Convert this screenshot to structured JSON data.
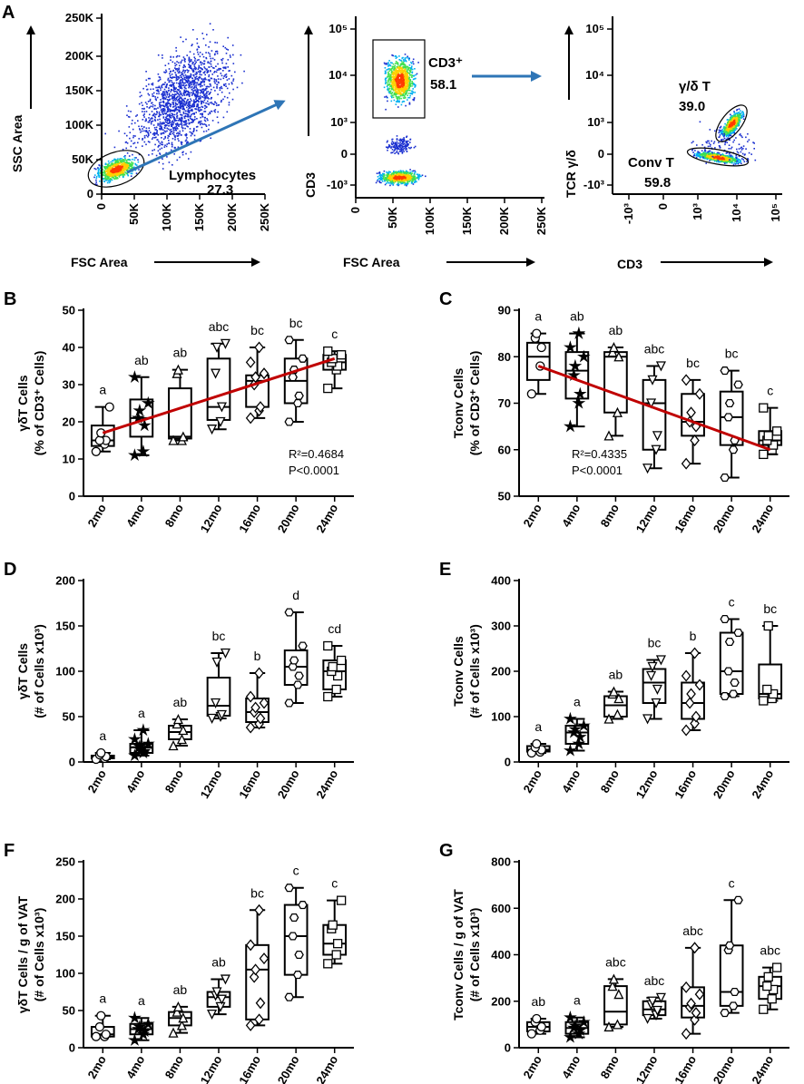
{
  "figure": {
    "panel_a_letter": "A",
    "flow_arrow_color": "#2e75b6",
    "fit_line_color": "#c00000"
  },
  "flow_panels": [
    {
      "id": "lymph",
      "y_title": "SSC Area",
      "x_title": "FSC Area",
      "x_ticks": [
        "0",
        "50K",
        "100K",
        "150K",
        "200K",
        "250K"
      ],
      "y_ticks": [
        "0",
        "50K",
        "100K",
        "150K",
        "200K",
        "250K"
      ],
      "gate_label": "Lymphocytes",
      "gate_value": "27.3"
    },
    {
      "id": "cd3",
      "y_title": "CD3",
      "x_title": "FSC Area",
      "x_ticks": [
        "0",
        "50K",
        "100K",
        "150K",
        "200K",
        "250K"
      ],
      "y_ticks": [
        "10⁵",
        "10⁴",
        "10³",
        "0",
        "-10³"
      ],
      "gate_label": "CD3⁺",
      "gate_value": "58.1"
    },
    {
      "id": "tcr",
      "y_title": "TCR γ/δ",
      "x_title": "CD3",
      "x_ticks": [
        "-10³",
        "0",
        "10³",
        "10⁴",
        "10⁵"
      ],
      "y_ticks": [
        "10⁵",
        "10⁴",
        "10³",
        "0",
        "-10³"
      ],
      "gate1_label": "γ/δ T",
      "gate1_value": "39.0",
      "gate2_label": "Conv T",
      "gate2_value": "59.8"
    }
  ],
  "chart_data": [
    {
      "panel": "B",
      "type": "box",
      "title": "",
      "ylabel_line1": "γδT Cells",
      "ylabel_line2": "(% of CD3⁺ Cells)",
      "ylim": [
        0,
        50
      ],
      "yticks": [
        0,
        10,
        20,
        30,
        40,
        50
      ],
      "categories": [
        "2mo",
        "4mo",
        "8mo",
        "12mo",
        "16mo",
        "20mo",
        "24mo"
      ],
      "letters": [
        "a",
        "ab",
        "ab",
        "abc",
        "bc",
        "bc",
        "c"
      ],
      "marker": [
        "circle",
        "star",
        "triangle",
        "triangle-down",
        "diamond",
        "hexagon",
        "square"
      ],
      "boxes": [
        {
          "min": 12,
          "q1": 13.5,
          "median": 15,
          "q3": 19,
          "max": 24
        },
        {
          "min": 11,
          "q1": 16,
          "median": 21,
          "q3": 26,
          "max": 32
        },
        {
          "min": 15,
          "q1": 15.5,
          "median": 16,
          "q3": 29,
          "max": 34
        },
        {
          "min": 18,
          "q1": 20.5,
          "median": 24,
          "q3": 37,
          "max": 41
        },
        {
          "min": 21,
          "q1": 24,
          "median": 31,
          "q3": 32.5,
          "max": 40
        },
        {
          "min": 20,
          "q1": 25,
          "median": 31,
          "q3": 37,
          "max": 42
        },
        {
          "min": 29,
          "q1": 34,
          "median": 36,
          "q3": 38,
          "max": 39
        }
      ],
      "points": [
        [
          12,
          14,
          15,
          15,
          17,
          24
        ],
        [
          11,
          12,
          19,
          21,
          23,
          25,
          32
        ],
        [
          15,
          15,
          16,
          33,
          34
        ],
        [
          18,
          20,
          24,
          33,
          40,
          41
        ],
        [
          21,
          23,
          24,
          30,
          32,
          33,
          36,
          40
        ],
        [
          20,
          25,
          27,
          32,
          34,
          37,
          42
        ],
        [
          29,
          34,
          35,
          36,
          37,
          38,
          39
        ]
      ],
      "fit": {
        "x_start": 0,
        "y_start": 17,
        "x_end": 6,
        "y_end": 37
      },
      "stat1": "R²=0.4684",
      "stat2": "P<0.0001",
      "stat_pos": "bottom-right"
    },
    {
      "panel": "C",
      "type": "box",
      "title": "",
      "ylabel_line1": "Tconv Cells",
      "ylabel_line2": "(% of CD3⁺ Cells)",
      "ylim": [
        50,
        90
      ],
      "yticks": [
        50,
        60,
        70,
        80,
        90
      ],
      "categories": [
        "2mo",
        "4mo",
        "8mo",
        "12mo",
        "16mo",
        "20mo",
        "24mo"
      ],
      "letters": [
        "a",
        "ab",
        "ab",
        "abc",
        "bc",
        "bc",
        "c"
      ],
      "marker": [
        "circle",
        "star",
        "triangle",
        "triangle-down",
        "diamond",
        "hexagon",
        "square"
      ],
      "boxes": [
        {
          "min": 72,
          "q1": 75,
          "median": 80,
          "q3": 83,
          "max": 85
        },
        {
          "min": 65,
          "q1": 71,
          "median": 77,
          "q3": 81,
          "max": 85
        },
        {
          "min": 63,
          "q1": 68,
          "median": 80,
          "q3": 81,
          "max": 82
        },
        {
          "min": 56,
          "q1": 60,
          "median": 70,
          "q3": 75,
          "max": 78
        },
        {
          "min": 57,
          "q1": 63,
          "median": 66,
          "q3": 72,
          "max": 75
        },
        {
          "min": 54,
          "q1": 61,
          "median": 67,
          "q3": 72.5,
          "max": 77
        },
        {
          "min": 59,
          "q1": 61,
          "median": 62,
          "q3": 64,
          "max": 69
        }
      ],
      "points": [
        [
          72,
          78,
          82,
          84,
          85
        ],
        [
          65,
          70,
          72,
          76,
          78,
          80,
          82,
          85
        ],
        [
          63,
          68,
          80,
          81,
          82
        ],
        [
          56,
          60,
          63,
          70,
          75,
          78
        ],
        [
          57,
          62,
          65,
          66,
          68,
          72,
          75
        ],
        [
          54,
          60,
          62,
          67,
          70,
          74,
          77
        ],
        [
          59,
          60,
          61,
          62,
          63,
          64,
          69
        ]
      ],
      "fit": {
        "x_start": 0,
        "y_start": 78,
        "x_end": 6,
        "y_end": 60
      },
      "stat1": "R²=0.4335",
      "stat2": "P<0.0001",
      "stat_pos": "bottom-left"
    },
    {
      "panel": "D",
      "type": "box",
      "title": "",
      "ylabel_line1": "γδT Cells",
      "ylabel_line2": "(# of Cells x10³)",
      "ylim": [
        0,
        200
      ],
      "yticks": [
        0,
        50,
        100,
        150,
        200
      ],
      "categories": [
        "2mo",
        "4mo",
        "8mo",
        "12mo",
        "16mo",
        "20mo",
        "24mo"
      ],
      "letters": [
        "a",
        "a",
        "ab",
        "bc",
        "b",
        "d",
        "cd"
      ],
      "marker": [
        "circle",
        "star",
        "triangle",
        "triangle-down",
        "diamond",
        "hexagon",
        "square"
      ],
      "boxes": [
        {
          "min": 3,
          "q1": 4,
          "median": 5,
          "q3": 7,
          "max": 10
        },
        {
          "min": 7,
          "q1": 10,
          "median": 16,
          "q3": 20,
          "max": 35
        },
        {
          "min": 18,
          "q1": 25,
          "median": 33,
          "q3": 40,
          "max": 47
        },
        {
          "min": 48,
          "q1": 51,
          "median": 62,
          "q3": 93,
          "max": 120
        },
        {
          "min": 38,
          "q1": 44,
          "median": 55,
          "q3": 70,
          "max": 98
        },
        {
          "min": 65,
          "q1": 85,
          "median": 105,
          "q3": 123,
          "max": 165
        },
        {
          "min": 72,
          "q1": 80,
          "median": 100,
          "q3": 112,
          "max": 128
        }
      ],
      "points": [
        [
          3,
          4,
          6,
          8,
          10
        ],
        [
          7,
          10,
          12,
          15,
          17,
          20,
          25,
          35
        ],
        [
          18,
          25,
          35,
          42,
          47
        ],
        [
          48,
          50,
          52,
          65,
          110,
          120
        ],
        [
          38,
          42,
          48,
          55,
          60,
          65,
          72,
          98
        ],
        [
          65,
          85,
          95,
          105,
          112,
          128,
          165
        ],
        [
          72,
          80,
          95,
          100,
          105,
          112,
          128
        ]
      ],
      "fit": null,
      "stat1": "",
      "stat2": "",
      "stat_pos": "none"
    },
    {
      "panel": "E",
      "type": "box",
      "title": "",
      "ylabel_line1": "Tconv Cells",
      "ylabel_line2": "(# of Cells x10³)",
      "ylim": [
        0,
        400
      ],
      "yticks": [
        0,
        100,
        200,
        300,
        400
      ],
      "categories": [
        "2mo",
        "4mo",
        "8mo",
        "12mo",
        "16mo",
        "20mo",
        "24mo"
      ],
      "letters": [
        "a",
        "a",
        "ab",
        "bc",
        "b",
        "c",
        "bc"
      ],
      "marker": [
        "circle",
        "star",
        "triangle",
        "triangle-down",
        "diamond",
        "hexagon",
        "square"
      ],
      "boxes": [
        {
          "min": 20,
          "q1": 23,
          "median": 27,
          "q3": 35,
          "max": 40
        },
        {
          "min": 25,
          "q1": 40,
          "median": 65,
          "q3": 80,
          "max": 95
        },
        {
          "min": 95,
          "q1": 100,
          "median": 125,
          "q3": 145,
          "max": 155
        },
        {
          "min": 95,
          "q1": 130,
          "median": 175,
          "q3": 205,
          "max": 225
        },
        {
          "min": 70,
          "q1": 95,
          "median": 130,
          "q3": 175,
          "max": 240
        },
        {
          "min": 145,
          "q1": 150,
          "median": 200,
          "q3": 285,
          "max": 315
        },
        {
          "min": 135,
          "q1": 140,
          "median": 150,
          "q3": 215,
          "max": 300
        }
      ],
      "points": [
        [
          20,
          22,
          27,
          32,
          40
        ],
        [
          25,
          40,
          55,
          65,
          72,
          80,
          95
        ],
        [
          95,
          105,
          140,
          150,
          155
        ],
        [
          95,
          130,
          160,
          190,
          210,
          225
        ],
        [
          70,
          85,
          100,
          130,
          150,
          170,
          190,
          240
        ],
        [
          145,
          150,
          175,
          200,
          265,
          285,
          315
        ],
        [
          135,
          140,
          150,
          160,
          300
        ]
      ],
      "fit": null,
      "stat1": "",
      "stat2": "",
      "stat_pos": "none"
    },
    {
      "panel": "F",
      "type": "box",
      "title": "",
      "ylabel_line1": "γδT Cells / g of VAT",
      "ylabel_line2": "(# of Cells x10³)",
      "ylim": [
        0,
        250
      ],
      "yticks": [
        0,
        50,
        100,
        150,
        200,
        250
      ],
      "categories": [
        "2mo",
        "4mo",
        "8mo",
        "12mo",
        "16mo",
        "20mo",
        "24mo"
      ],
      "letters": [
        "a",
        "a",
        "ab",
        "ab",
        "bc",
        "c",
        "c"
      ],
      "marker": [
        "circle",
        "star",
        "triangle",
        "triangle-down",
        "diamond",
        "hexagon",
        "square"
      ],
      "boxes": [
        {
          "min": 15,
          "q1": 15,
          "median": 18,
          "q3": 28,
          "max": 43
        },
        {
          "min": 10,
          "q1": 18,
          "median": 25,
          "q3": 32,
          "max": 40
        },
        {
          "min": 20,
          "q1": 30,
          "median": 40,
          "q3": 48,
          "max": 55
        },
        {
          "min": 45,
          "q1": 55,
          "median": 68,
          "q3": 75,
          "max": 92
        },
        {
          "min": 30,
          "q1": 38,
          "median": 105,
          "q3": 138,
          "max": 185
        },
        {
          "min": 68,
          "q1": 98,
          "median": 150,
          "q3": 192,
          "max": 215
        },
        {
          "min": 113,
          "q1": 125,
          "median": 140,
          "q3": 165,
          "max": 198
        }
      ],
      "points": [
        [
          15,
          15,
          18,
          28,
          43
        ],
        [
          10,
          18,
          22,
          25,
          28,
          32,
          40
        ],
        [
          20,
          30,
          40,
          48,
          55
        ],
        [
          45,
          55,
          65,
          70,
          75,
          92
        ],
        [
          30,
          38,
          60,
          95,
          105,
          120,
          138,
          185
        ],
        [
          68,
          98,
          125,
          150,
          175,
          192,
          215
        ],
        [
          113,
          125,
          140,
          160,
          165,
          198
        ]
      ],
      "fit": null,
      "stat1": "",
      "stat2": "",
      "stat_pos": "none"
    },
    {
      "panel": "G",
      "type": "box",
      "title": "",
      "ylabel_line1": "Tconv Cells / g of VAT",
      "ylabel_line2": "(# of Cells x10³)",
      "ylim": [
        0,
        800
      ],
      "yticks": [
        0,
        200,
        400,
        600,
        800
      ],
      "categories": [
        "2mo",
        "4mo",
        "8mo",
        "12mo",
        "16mo",
        "20mo",
        "24mo"
      ],
      "letters": [
        "ab",
        "a",
        "abc",
        "abc",
        "abc",
        "c",
        "abc"
      ],
      "marker": [
        "circle",
        "star",
        "triangle",
        "triangle-down",
        "diamond",
        "hexagon",
        "square"
      ],
      "boxes": [
        {
          "min": 60,
          "q1": 70,
          "median": 90,
          "q3": 110,
          "max": 125
        },
        {
          "min": 45,
          "q1": 60,
          "median": 85,
          "q3": 110,
          "max": 130
        },
        {
          "min": 90,
          "q1": 100,
          "median": 155,
          "q3": 265,
          "max": 295
        },
        {
          "min": 125,
          "q1": 140,
          "median": 165,
          "q3": 200,
          "max": 215
        },
        {
          "min": 60,
          "q1": 130,
          "median": 180,
          "q3": 260,
          "max": 430
        },
        {
          "min": 150,
          "q1": 180,
          "median": 240,
          "q3": 440,
          "max": 635
        },
        {
          "min": 165,
          "q1": 210,
          "median": 265,
          "q3": 305,
          "max": 345
        }
      ],
      "points": [
        [
          60,
          75,
          90,
          110,
          125
        ],
        [
          45,
          60,
          75,
          85,
          95,
          110,
          130
        ],
        [
          90,
          100,
          230,
          265,
          295
        ],
        [
          125,
          140,
          160,
          185,
          200,
          215
        ],
        [
          60,
          120,
          150,
          175,
          190,
          230,
          260,
          430
        ],
        [
          150,
          180,
          240,
          420,
          440,
          635
        ],
        [
          165,
          210,
          250,
          265,
          305,
          345
        ]
      ],
      "fit": null,
      "stat1": "",
      "stat2": "",
      "stat_pos": "none"
    }
  ]
}
